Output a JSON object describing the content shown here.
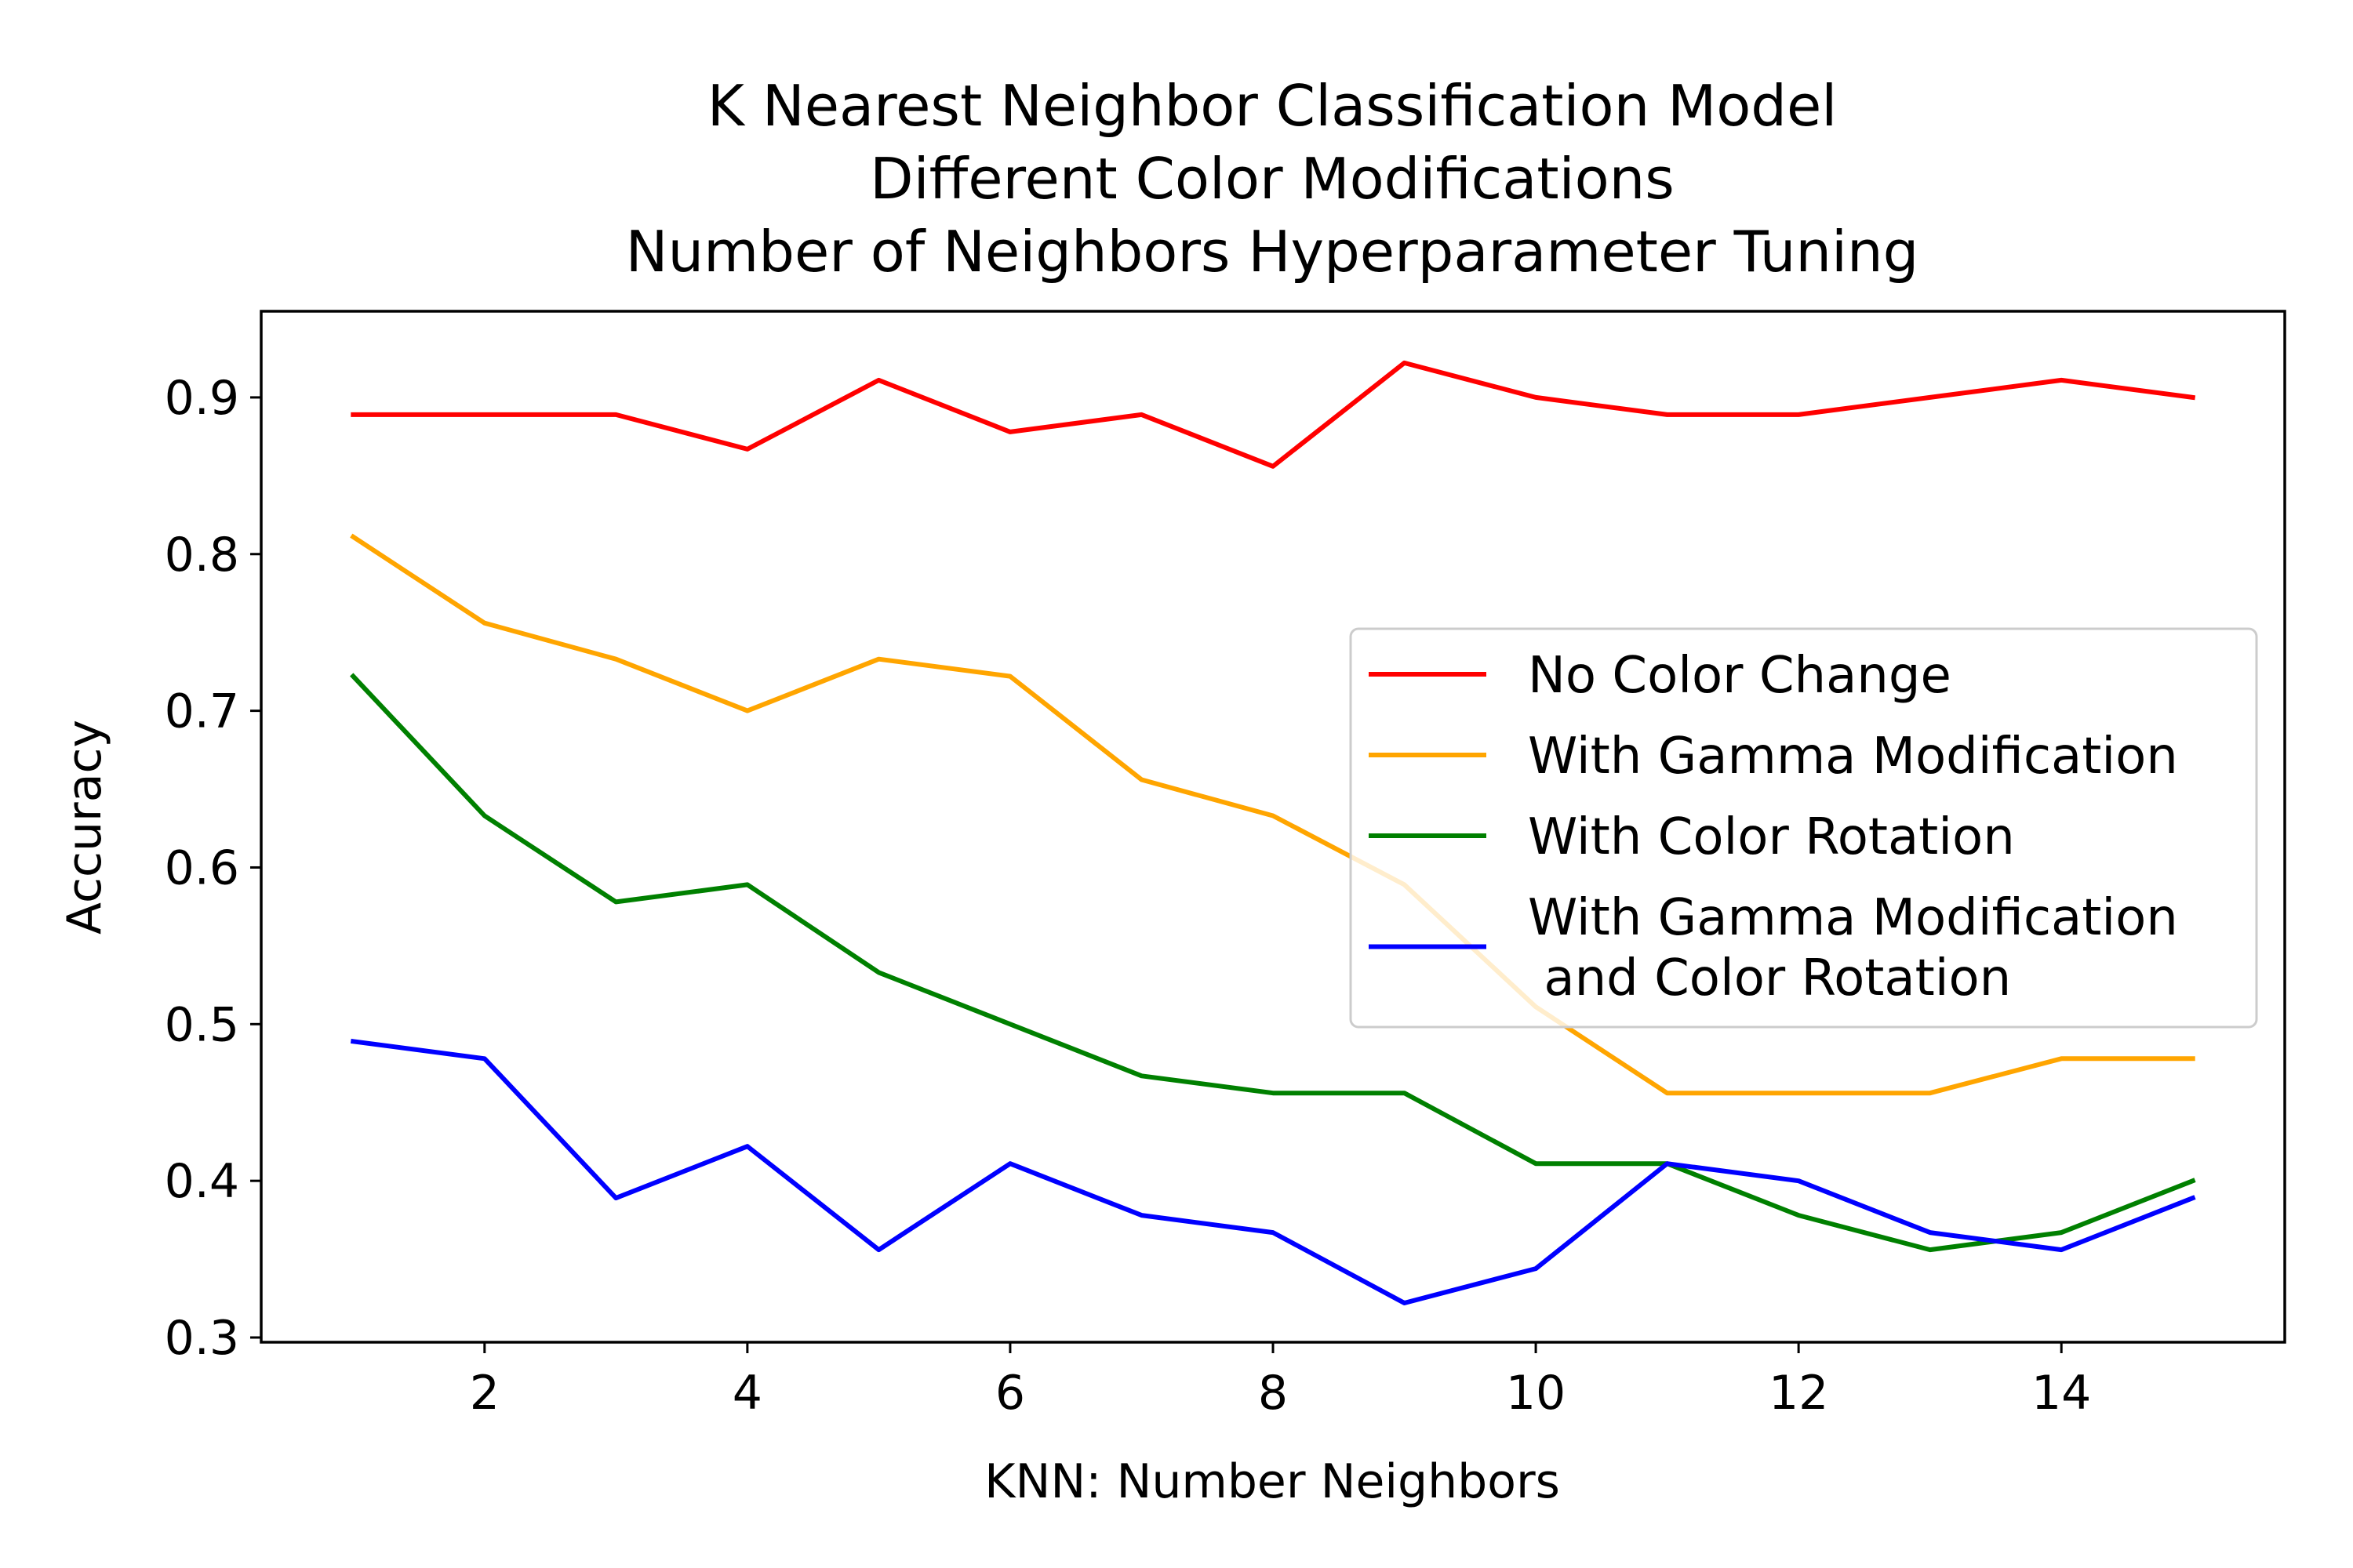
{
  "chart_data": {
    "type": "line",
    "title": [
      "K Nearest Neighbor Classification Model",
      "Different Color Modifications",
      "Number of Neighbors Hyperparameter Tuning"
    ],
    "xlabel": "KNN: Number Neighbors",
    "ylabel": "Accuracy",
    "x": [
      1,
      2,
      3,
      4,
      5,
      6,
      7,
      8,
      9,
      10,
      11,
      12,
      13,
      14,
      15
    ],
    "xlim": [
      0.3,
      15.7
    ],
    "ylim": [
      0.297,
      0.955
    ],
    "xticks": [
      2,
      4,
      6,
      8,
      10,
      12,
      14
    ],
    "yticks": [
      0.3,
      0.4,
      0.5,
      0.6,
      0.7,
      0.8,
      0.9
    ],
    "xtick_labels": [
      "2",
      "4",
      "6",
      "8",
      "10",
      "12",
      "14"
    ],
    "ytick_labels": [
      "0.3",
      "0.4",
      "0.5",
      "0.6",
      "0.7",
      "0.8",
      "0.9"
    ],
    "grid": false,
    "legend_position": "center-right",
    "series": [
      {
        "name": "No Color Change",
        "color": "#ff0000",
        "values": [
          0.889,
          0.889,
          0.889,
          0.867,
          0.911,
          0.878,
          0.889,
          0.856,
          0.922,
          0.9,
          0.889,
          0.889,
          0.9,
          0.911,
          0.9
        ]
      },
      {
        "name": "With Gamma Modification",
        "color": "#ffa500",
        "values": [
          0.811,
          0.756,
          0.733,
          0.7,
          0.733,
          0.722,
          0.656,
          0.633,
          0.589,
          0.511,
          0.456,
          0.456,
          0.456,
          0.478,
          0.478
        ]
      },
      {
        "name": "With Color Rotation",
        "color": "#008000",
        "values": [
          0.722,
          0.633,
          0.578,
          0.589,
          0.533,
          0.5,
          0.467,
          0.456,
          0.456,
          0.411,
          0.411,
          0.378,
          0.356,
          0.367,
          0.4
        ]
      },
      {
        "name": "With Gamma Modification\n and Color Rotation",
        "color": "#0000ff",
        "values": [
          0.489,
          0.478,
          0.389,
          0.422,
          0.356,
          0.411,
          0.378,
          0.367,
          0.322,
          0.344,
          0.411,
          0.4,
          0.367,
          0.356,
          0.389
        ]
      }
    ]
  }
}
